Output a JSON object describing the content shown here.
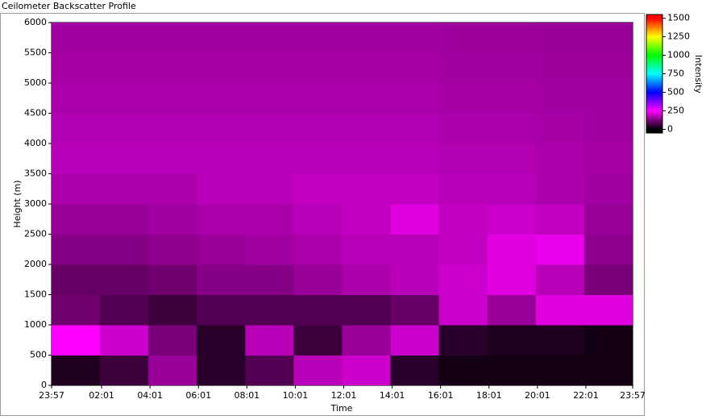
{
  "chart_data": {
    "type": "heatmap",
    "title": "Ceilometer Backscatter Profile",
    "x_label": "Time",
    "y_label": "Height (m)",
    "colorbar_label": "Intensity",
    "xlim": [
      0,
      1440
    ],
    "xticks": [
      {
        "value": 0,
        "label": "23:57"
      },
      {
        "value": 124,
        "label": "02:01"
      },
      {
        "value": 244,
        "label": "04:01"
      },
      {
        "value": 364,
        "label": "06:01"
      },
      {
        "value": 484,
        "label": "08:01"
      },
      {
        "value": 604,
        "label": "10:01"
      },
      {
        "value": 724,
        "label": "12:01"
      },
      {
        "value": 844,
        "label": "14:01"
      },
      {
        "value": 964,
        "label": "16:01"
      },
      {
        "value": 1084,
        "label": "18:01"
      },
      {
        "value": 1204,
        "label": "20:01"
      },
      {
        "value": 1324,
        "label": "22:01"
      },
      {
        "value": 1440,
        "label": "23:57"
      }
    ],
    "ylim": [
      0,
      6000
    ],
    "yticks": [
      0,
      500,
      1000,
      1500,
      2000,
      2500,
      3000,
      3500,
      4000,
      4500,
      5000,
      5500,
      6000
    ],
    "clim": [
      -50,
      1550
    ],
    "cticks": [
      0,
      250,
      500,
      750,
      1000,
      1250,
      1500
    ],
    "colorscale": [
      [
        0,
        "#000000"
      ],
      [
        250,
        "#ff00ff"
      ],
      [
        500,
        "#0000ff"
      ],
      [
        750,
        "#00ffff"
      ],
      [
        1000,
        "#00ff00"
      ],
      [
        1250,
        "#ffff00"
      ],
      [
        1500,
        "#ff0000"
      ]
    ],
    "xbins": [
      0,
      120,
      240,
      360,
      480,
      600,
      720,
      840,
      960,
      1080,
      1200,
      1320,
      1440
    ],
    "ybins": [
      0,
      500,
      1000,
      1500,
      2000,
      2500,
      3000,
      3500,
      4000,
      4500,
      5000,
      5500,
      6000
    ],
    "z": [
      [
        30,
        60,
        150,
        40,
        80,
        180,
        200,
        40,
        20,
        20,
        20,
        20
      ],
      [
        250,
        200,
        120,
        40,
        180,
        60,
        150,
        200,
        40,
        30,
        30,
        20
      ],
      [
        110,
        80,
        60,
        80,
        80,
        80,
        80,
        100,
        200,
        150,
        220,
        220
      ],
      [
        100,
        100,
        110,
        130,
        130,
        150,
        170,
        180,
        200,
        220,
        180,
        120
      ],
      [
        130,
        130,
        140,
        150,
        160,
        170,
        180,
        180,
        190,
        220,
        230,
        140
      ],
      [
        150,
        150,
        160,
        170,
        170,
        180,
        190,
        220,
        190,
        200,
        190,
        150
      ],
      [
        170,
        170,
        170,
        180,
        180,
        190,
        190,
        190,
        180,
        180,
        170,
        160
      ],
      [
        180,
        180,
        180,
        180,
        180,
        180,
        180,
        180,
        175,
        175,
        170,
        165
      ],
      [
        175,
        175,
        175,
        175,
        175,
        175,
        175,
        175,
        170,
        170,
        165,
        160
      ],
      [
        170,
        170,
        170,
        170,
        170,
        170,
        170,
        170,
        165,
        165,
        160,
        160
      ],
      [
        165,
        165,
        165,
        165,
        165,
        165,
        165,
        165,
        160,
        160,
        155,
        155
      ],
      [
        160,
        160,
        160,
        160,
        160,
        160,
        160,
        160,
        155,
        155,
        150,
        150
      ]
    ]
  }
}
